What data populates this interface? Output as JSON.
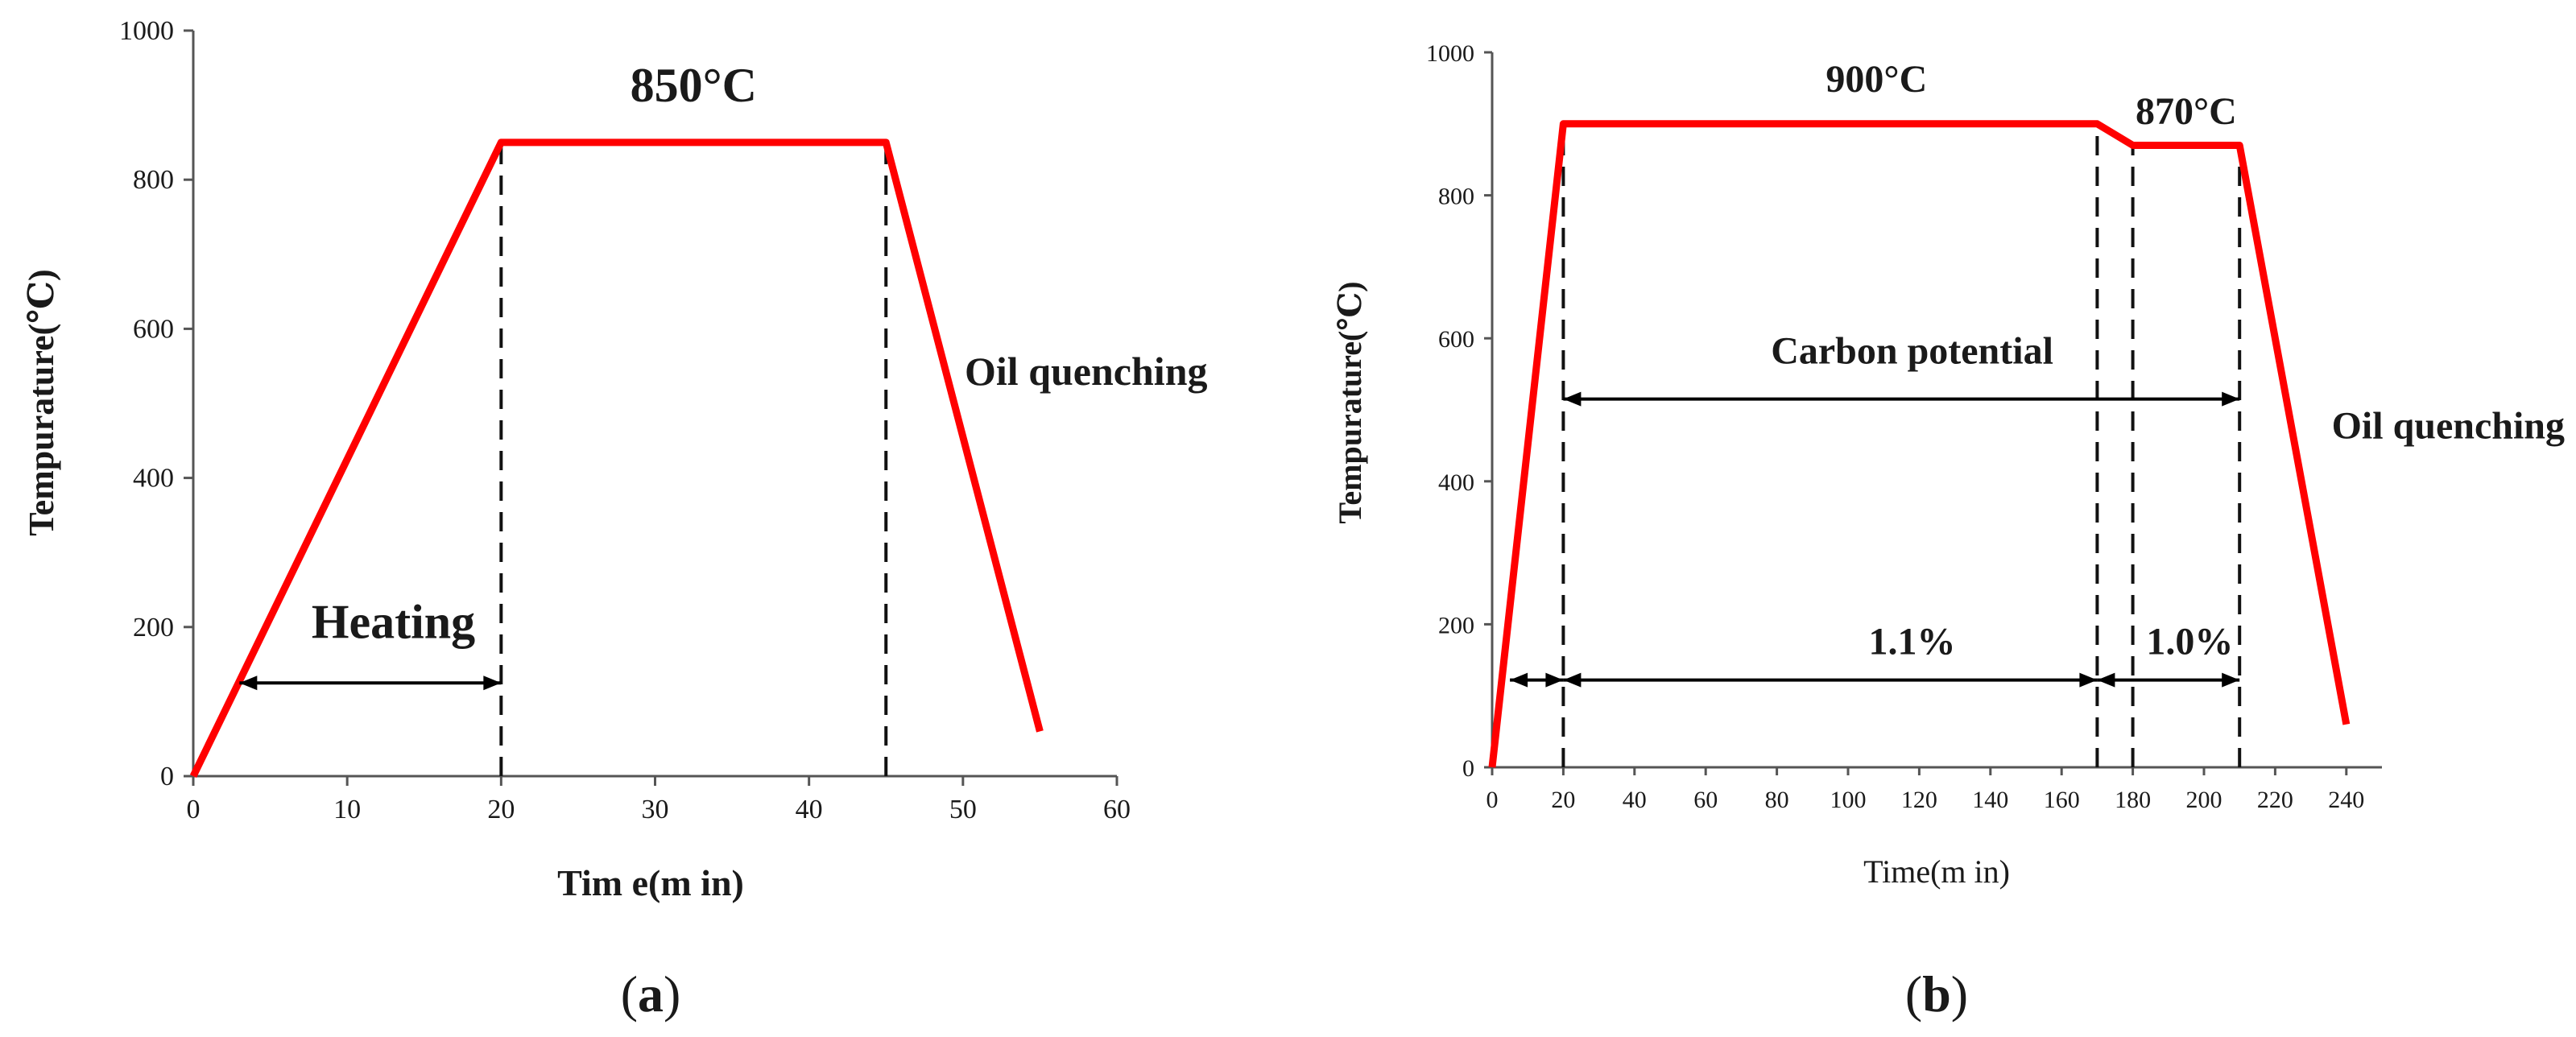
{
  "chart_data": [
    {
      "type": "line",
      "panel_label": "a",
      "title": "",
      "xlabel": "Time(min)",
      "xlabel_display": "Tim e(m in)",
      "ylabel": "Tempurature(℃)",
      "xlim": [
        0,
        60
      ],
      "ylim": [
        0,
        1000
      ],
      "x_ticks": [
        0,
        10,
        20,
        30,
        40,
        50,
        60
      ],
      "y_ticks": [
        0,
        200,
        400,
        600,
        800,
        1000
      ],
      "grid": false,
      "series": [
        {
          "name": "temperature profile",
          "color": "#ff0000",
          "x": [
            0,
            20,
            45,
            55
          ],
          "y": [
            0,
            850,
            850,
            60
          ]
        }
      ],
      "vlines": [
        {
          "x": 20,
          "y_from": 0,
          "y_to": 850
        },
        {
          "x": 45,
          "y_from": 0,
          "y_to": 850
        }
      ],
      "arrows": [
        {
          "x_from": 3,
          "x_to": 20,
          "y": 125
        }
      ],
      "annotations": [
        {
          "id": "hold",
          "text": "850°C",
          "x": 32.5,
          "y": 905,
          "style": "big"
        },
        {
          "id": "heating",
          "text": "Heating",
          "x": 13,
          "y": 185,
          "style": "big"
        },
        {
          "id": "oil",
          "text": "Oil quenching",
          "x": 58,
          "y": 525,
          "style": "small"
        }
      ]
    },
    {
      "type": "line",
      "panel_label": "b",
      "title": "",
      "xlabel": "Time(min)",
      "xlabel_display": "Time(m in)",
      "ylabel": "Tempurature(℃)",
      "xlim": [
        0,
        250
      ],
      "ylim": [
        0,
        1000
      ],
      "x_ticks": [
        0,
        20,
        40,
        60,
        80,
        100,
        120,
        140,
        160,
        180,
        200,
        220,
        240
      ],
      "y_ticks": [
        0,
        200,
        400,
        600,
        800,
        1000
      ],
      "grid": false,
      "series": [
        {
          "name": "temperature profile",
          "color": "#ff0000",
          "x": [
            0,
            20,
            170,
            180,
            210,
            240
          ],
          "y": [
            0,
            900,
            900,
            870,
            870,
            60
          ]
        }
      ],
      "vlines": [
        {
          "x": 20,
          "y_from": 0,
          "y_to": 900
        },
        {
          "x": 170,
          "y_from": 0,
          "y_to": 900
        },
        {
          "x": 180,
          "y_from": 0,
          "y_to": 870
        },
        {
          "x": 210,
          "y_from": 0,
          "y_to": 870
        }
      ],
      "arrows": [
        {
          "x_from": 20,
          "x_to": 210,
          "y": 515
        },
        {
          "x_from": 5,
          "x_to": 20,
          "y": 122
        },
        {
          "x_from": 20,
          "x_to": 170,
          "y": 122
        },
        {
          "x_from": 170,
          "x_to": 210,
          "y": 122
        }
      ],
      "annotations": [
        {
          "id": "hold1",
          "text": "900°C",
          "x": 108,
          "y": 945
        },
        {
          "id": "hold2",
          "text": "870°C",
          "x": 195,
          "y": 900
        },
        {
          "id": "carbon",
          "text": "Carbon potential",
          "x": 118,
          "y": 565
        },
        {
          "id": "cp1",
          "text": "1.1%",
          "x": 118,
          "y": 158
        },
        {
          "id": "cp2",
          "text": "1.0%",
          "x": 196,
          "y": 158
        },
        {
          "id": "oil",
          "text": "Oil quenching",
          "x": 250,
          "y": 460
        }
      ]
    }
  ]
}
